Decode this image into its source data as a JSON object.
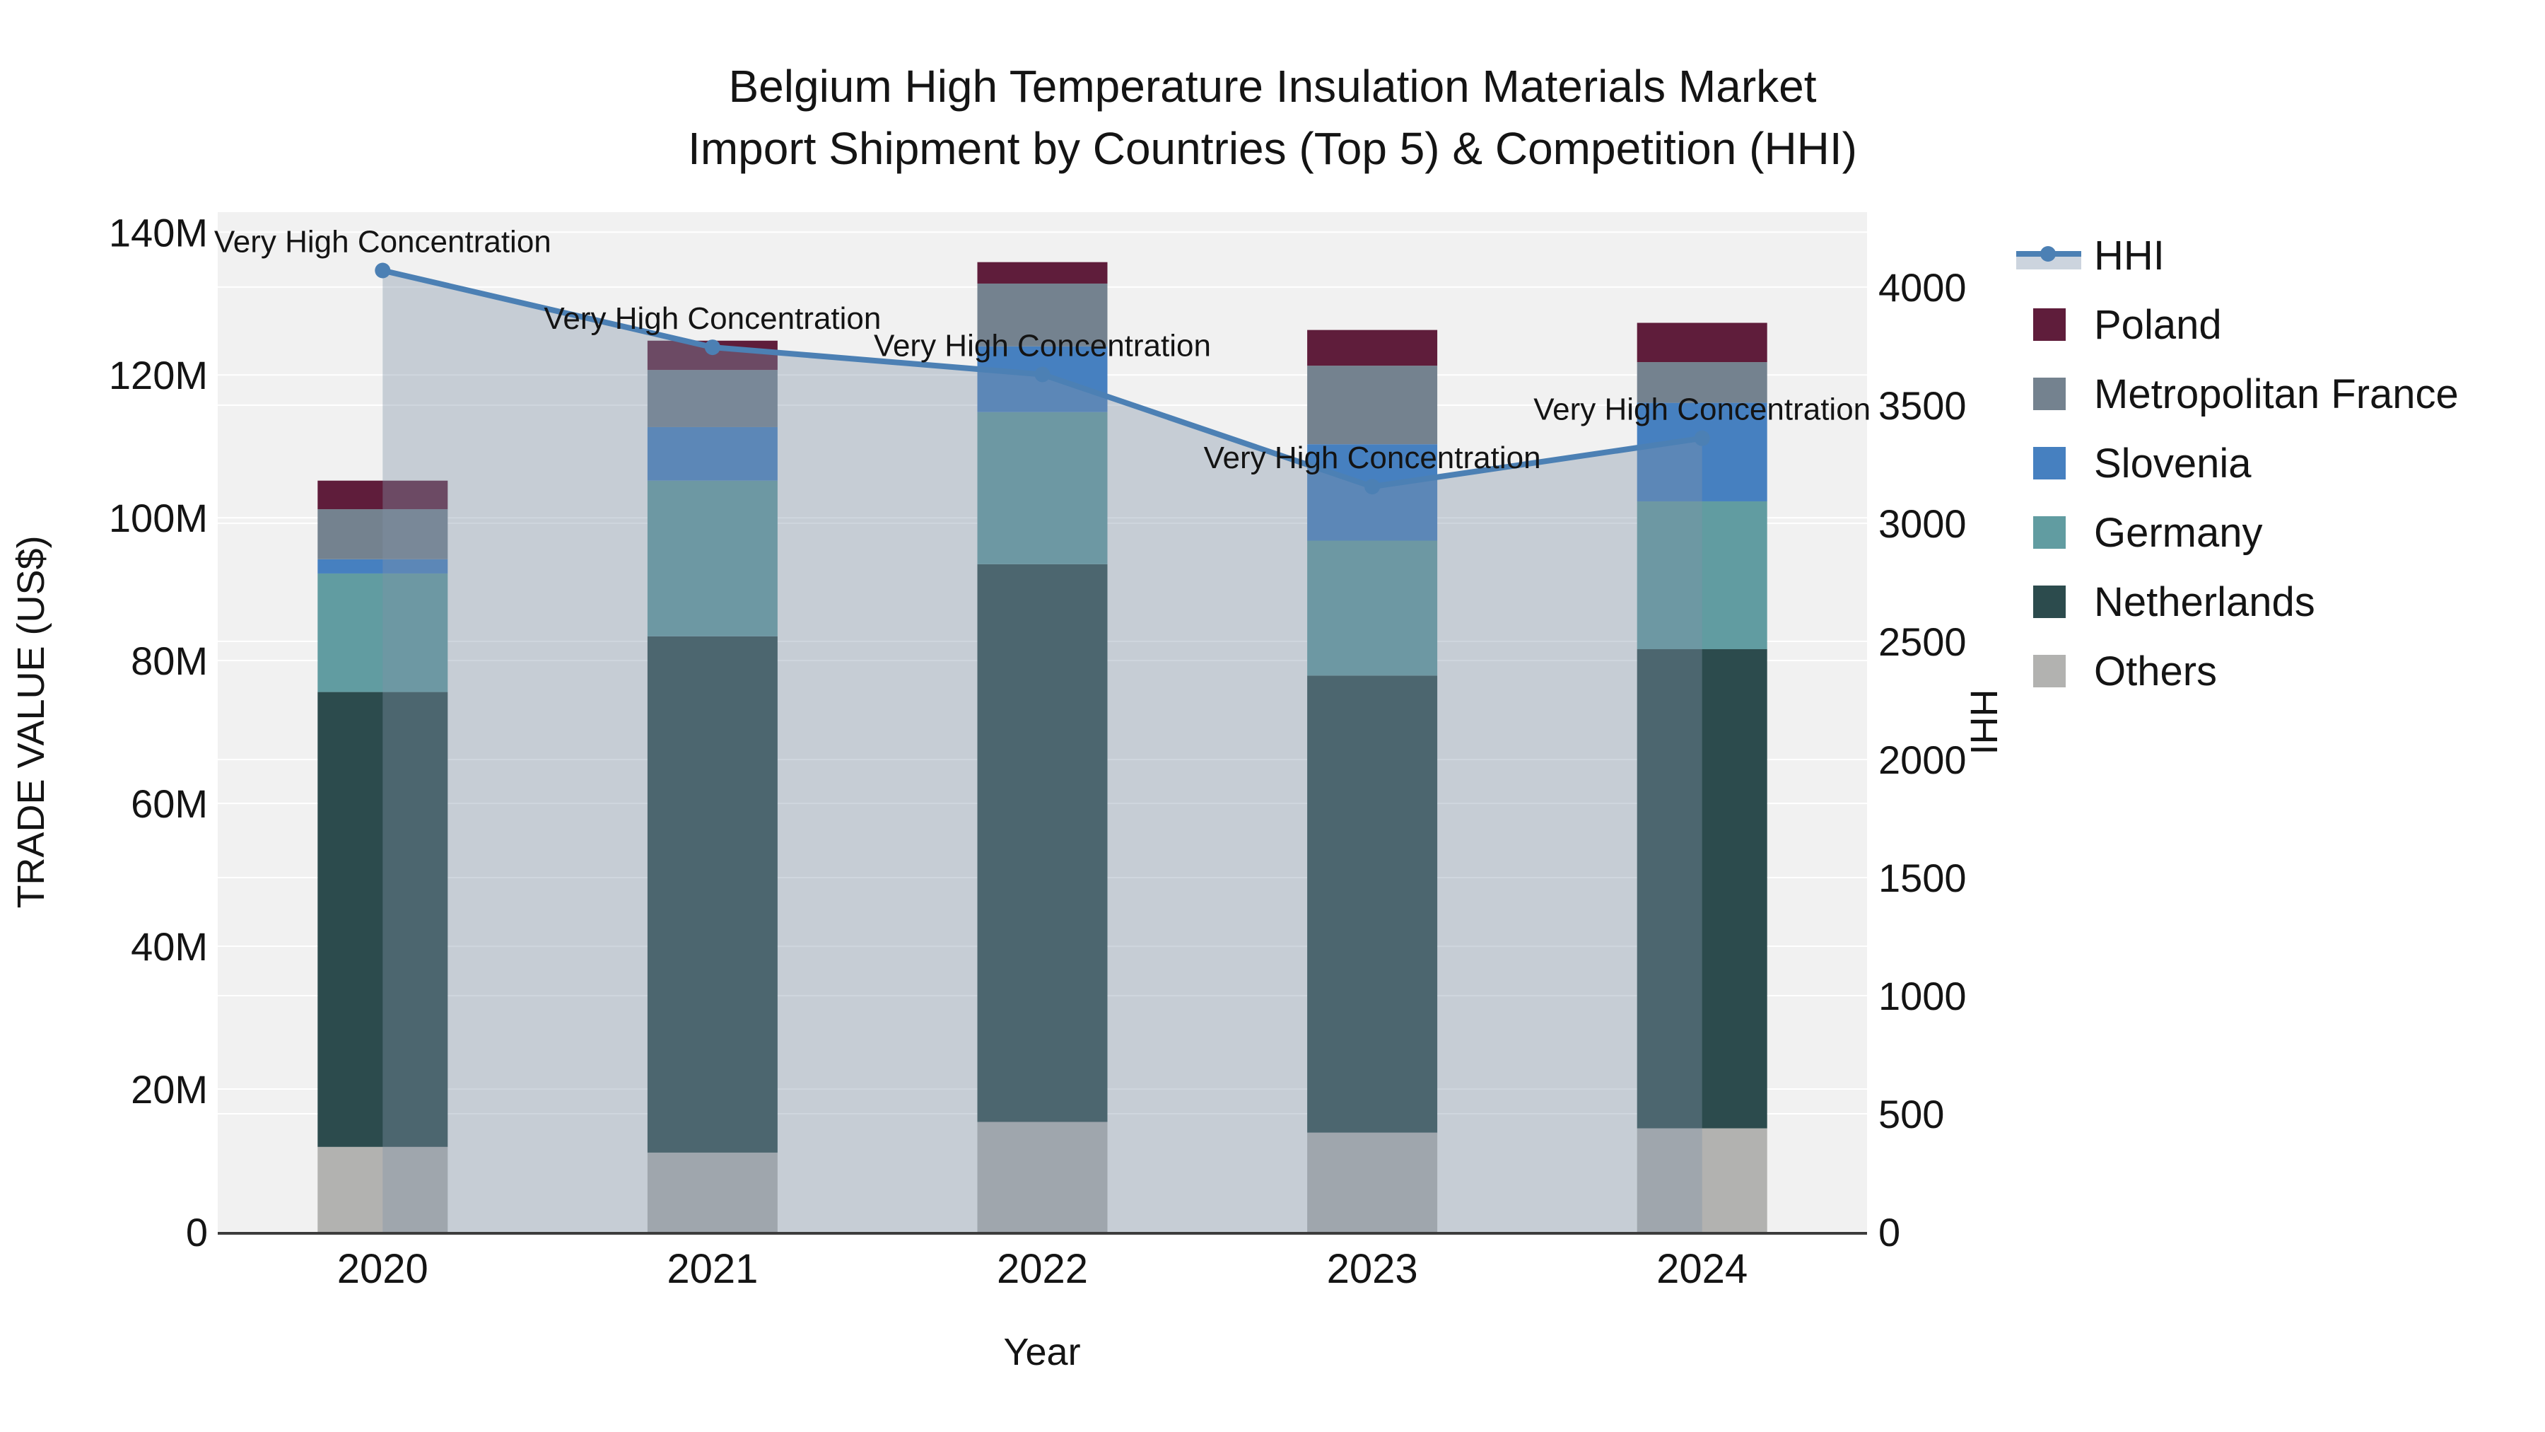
{
  "title": {
    "line1": "Belgium High Temperature Insulation Materials Market",
    "line2": "Import Shipment by Countries (Top 5) & Competition (HHI)"
  },
  "axes": {
    "x": {
      "title": "Year",
      "ticks": [
        "2020",
        "2021",
        "2022",
        "2023",
        "2024"
      ]
    },
    "y_left": {
      "title": "TRADE VALUE (US$)",
      "ticks": [
        "0",
        "20M",
        "40M",
        "60M",
        "80M",
        "100M",
        "120M",
        "140M"
      ]
    },
    "y_right": {
      "title": "HHI",
      "ticks": [
        "0",
        "500",
        "1000",
        "1500",
        "2000",
        "2500",
        "3000",
        "3500",
        "4000"
      ]
    }
  },
  "legend": {
    "items": [
      {
        "label": "HHI",
        "type": "line-area",
        "color": "#4c80b4"
      },
      {
        "label": "Poland",
        "type": "square",
        "color": "#5f1d3b"
      },
      {
        "label": "Metropolitan France",
        "type": "square",
        "color": "#74828f"
      },
      {
        "label": "Slovenia",
        "type": "square",
        "color": "#4680c0"
      },
      {
        "label": "Germany",
        "type": "square",
        "color": "#619ca1"
      },
      {
        "label": "Netherlands",
        "type": "square",
        "color": "#2c4b4d"
      },
      {
        "label": "Others",
        "type": "square",
        "color": "#b2b2b0"
      }
    ]
  },
  "colors": {
    "plot_bg": "#f1f1f1",
    "grid": "#ffffff",
    "axis_line": "#3d3d3d",
    "hhi_line": "#4c80b4",
    "hhi_area": "rgba(130,148,168,0.38)",
    "text": "#141414"
  },
  "chart_data": {
    "type": "bar",
    "subtype": "stacked bars (left axis, trade value in millions US$) + HHI line with shaded area (right axis)",
    "title": "Belgium High Temperature Insulation Materials Market Import Shipment by Countries (Top 5) & Competition (HHI)",
    "xlabel": "Year",
    "ylabel_left": "TRADE VALUE (US$)",
    "ylabel_right": "HHI",
    "categories": [
      "2020",
      "2021",
      "2022",
      "2023",
      "2024"
    ],
    "ylim_left_millions": [
      0,
      142.8
    ],
    "ylim_right": [
      0,
      4317
    ],
    "grid": true,
    "legend_position": "right",
    "series": [
      {
        "name": "Others",
        "type": "bar",
        "color": "#b2b2b0",
        "values_millions": [
          11.9,
          11.1,
          15.4,
          13.9,
          14.5
        ]
      },
      {
        "name": "Netherlands",
        "type": "bar",
        "color": "#2c4b4d",
        "values_millions": [
          63.7,
          72.3,
          78.1,
          64.0,
          67.1
        ]
      },
      {
        "name": "Germany",
        "type": "bar",
        "color": "#619ca1",
        "values_millions": [
          16.6,
          21.8,
          21.3,
          18.9,
          20.7
        ]
      },
      {
        "name": "Slovenia",
        "type": "bar",
        "color": "#4680c0",
        "values_millions": [
          2.0,
          7.5,
          9.2,
          13.5,
          13.8
        ]
      },
      {
        "name": "Metropolitan France",
        "type": "bar",
        "color": "#74828f",
        "values_millions": [
          7.0,
          8.0,
          8.8,
          11.0,
          5.7
        ]
      },
      {
        "name": "Poland",
        "type": "bar",
        "color": "#5f1d3b",
        "values_millions": [
          4.0,
          4.1,
          3.0,
          5.0,
          5.5
        ]
      }
    ],
    "bar_totals_millions": [
      105.2,
      124.8,
      135.8,
      126.3,
      127.3
    ],
    "hhi": {
      "name": "HHI",
      "type": "line+area",
      "values": [
        4070,
        3745,
        3630,
        3155,
        3360
      ],
      "annotations": [
        "Very High Concentration",
        "Very High Concentration",
        "Very High Concentration",
        "Very High Concentration",
        "Very High Concentration"
      ]
    }
  }
}
